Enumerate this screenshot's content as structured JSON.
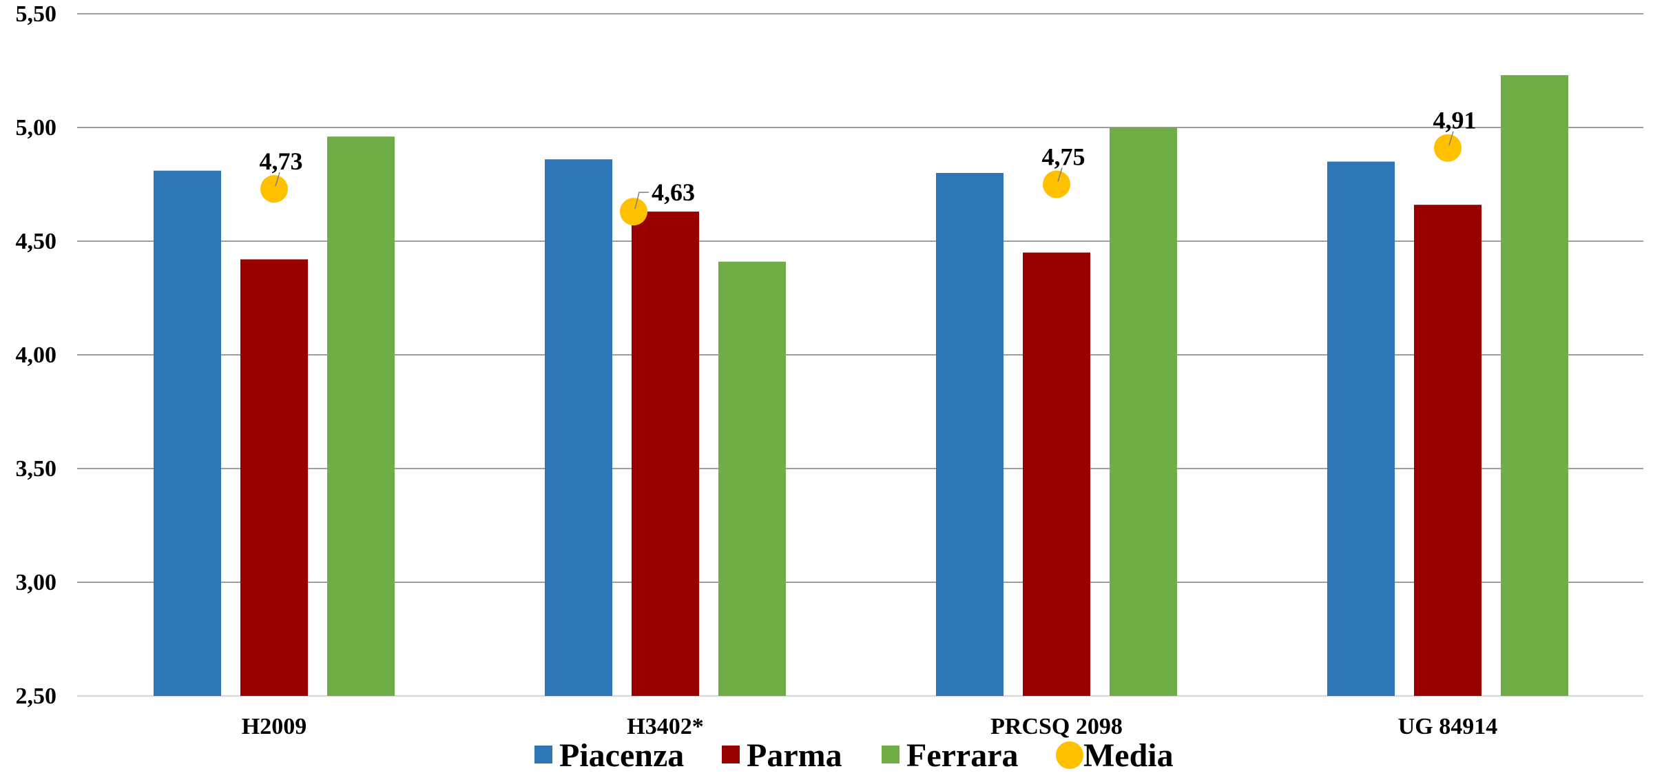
{
  "chart_data": {
    "type": "bar",
    "title": "",
    "xlabel": "",
    "ylabel": "",
    "ylim": [
      2.5,
      5.5
    ],
    "y_ticks": [
      "2,50",
      "3,00",
      "3,50",
      "4,00",
      "4,50",
      "5,00",
      "5,50"
    ],
    "y_tick_values": [
      2.5,
      3.0,
      3.5,
      4.0,
      4.5,
      5.0,
      5.5
    ],
    "grid": true,
    "legend_position": "bottom",
    "categories": [
      "H2009",
      "H3402*",
      "PRCSQ 2098",
      "UG 84914"
    ],
    "series": [
      {
        "name": "Piacenza",
        "type": "bar",
        "color": "#2E75B6",
        "values": [
          4.81,
          4.86,
          4.8,
          4.85
        ]
      },
      {
        "name": "Parma",
        "type": "bar",
        "color": "#990000",
        "values": [
          4.42,
          4.63,
          4.45,
          4.66
        ]
      },
      {
        "name": "Ferrara",
        "type": "bar",
        "color": "#70AD47",
        "values": [
          4.96,
          4.41,
          5.0,
          5.23
        ]
      },
      {
        "name": "Media",
        "type": "scatter",
        "color": "#FFC000",
        "values": [
          4.73,
          4.63,
          4.75,
          4.91
        ],
        "labels": [
          "4,73",
          "4,63",
          "4,75",
          "4,91"
        ]
      }
    ]
  }
}
